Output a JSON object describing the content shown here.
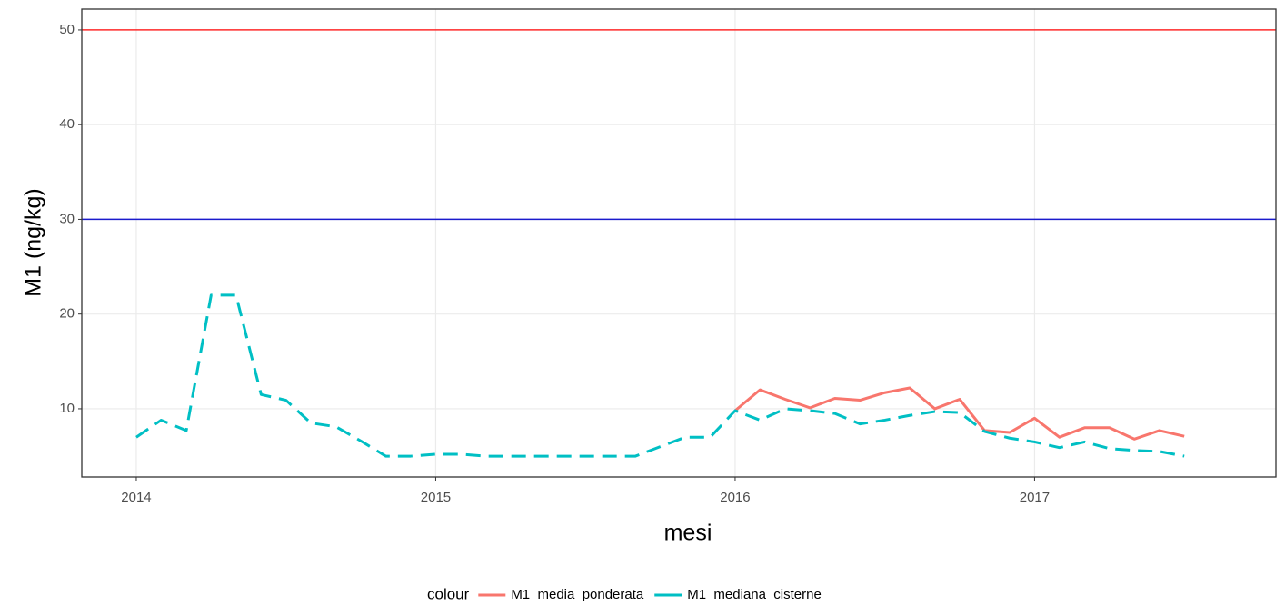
{
  "chart_data": {
    "type": "line",
    "x_label": "mesi",
    "y_label": "M1 (ng/kg)",
    "legend_title": "colour",
    "legend": "bottom",
    "grid": true,
    "xlim": [
      2013.818,
      2017.806
    ],
    "xticks": [
      2014,
      2015,
      2016,
      2017
    ],
    "ylim": [
      2.8,
      52.2
    ],
    "yticks": [
      10,
      20,
      30,
      40,
      50
    ],
    "hlines": [
      {
        "value": 50,
        "color": "#ff2a2a"
      },
      {
        "value": 30,
        "color": "#1a1acc"
      }
    ],
    "x": [
      2014,
      2014.083,
      2014.167,
      2014.25,
      2014.333,
      2014.417,
      2014.5,
      2014.583,
      2014.667,
      2014.75,
      2014.833,
      2014.917,
      2015,
      2015.083,
      2015.167,
      2015.25,
      2015.333,
      2015.417,
      2015.5,
      2015.583,
      2015.667,
      2015.75,
      2015.833,
      2015.917,
      2016,
      2016.083,
      2016.167,
      2016.25,
      2016.333,
      2016.417,
      2016.5,
      2016.583,
      2016.667,
      2016.75,
      2016.833,
      2016.917,
      2017,
      2017.083,
      2017.167,
      2017.25,
      2017.333,
      2017.417,
      2017.5
    ],
    "series": [
      {
        "name": "M1_media_ponderata",
        "color": "#f8766d",
        "dash": false,
        "values": [
          null,
          null,
          null,
          null,
          null,
          null,
          null,
          null,
          null,
          null,
          null,
          null,
          null,
          null,
          null,
          null,
          null,
          null,
          null,
          null,
          null,
          null,
          null,
          null,
          9.8,
          12.0,
          11.0,
          10.1,
          11.1,
          10.9,
          11.7,
          12.2,
          10.0,
          11.0,
          7.7,
          7.5,
          9.0,
          7.0,
          8.0,
          8.0,
          6.8,
          7.7,
          7.1
        ]
      },
      {
        "name": "M1_mediana_cisterne",
        "color": "#00bfc4",
        "dash": true,
        "values": [
          7.0,
          8.8,
          7.7,
          22.0,
          22.0,
          11.5,
          10.9,
          8.5,
          8.1,
          6.6,
          5.0,
          5.0,
          5.2,
          5.2,
          5.0,
          5.0,
          5.0,
          5.0,
          5.0,
          5.0,
          5.0,
          6.0,
          7.0,
          7.0,
          9.8,
          8.8,
          10.0,
          9.8,
          9.5,
          8.4,
          8.8,
          9.3,
          9.7,
          9.6,
          7.6,
          6.9,
          6.5,
          5.9,
          6.5,
          5.8,
          5.6,
          5.5,
          5.0
        ]
      }
    ]
  }
}
